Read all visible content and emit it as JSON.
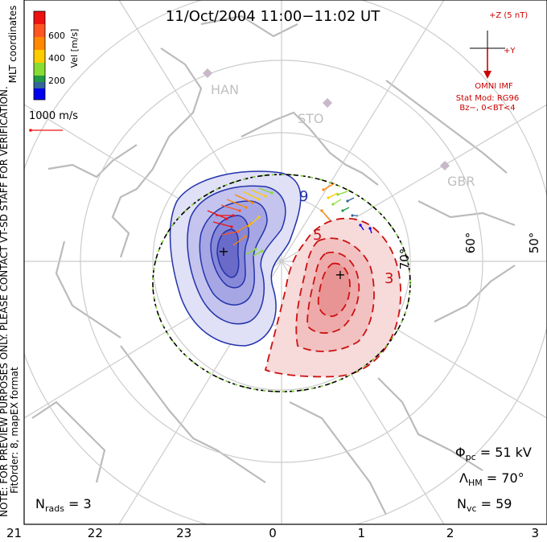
{
  "header": {
    "title": "11/Oct/2004 11:00−11:02 UT"
  },
  "colorbar": {
    "label": "Vel [m/s]",
    "ticks": [
      "600",
      "400",
      "200"
    ],
    "colors": [
      "#ee1111",
      "#ff8800",
      "#ffcc00",
      "#88dd33",
      "#229944",
      "#336699",
      "#0000ee"
    ]
  },
  "side_text": {
    "coords": "MLT coordinates",
    "note": "NOTE: FOR PREVIEW PURPOSES ONLY. PLEASE CONTACT VT-SD STAFF FOR VERIFICATION.",
    "fit": "FitOrder: 8, mapEX format"
  },
  "scale": {
    "label": "1000 m/s"
  },
  "imf": {
    "z_label": "+Z (5 nT)",
    "y_label": "+Y",
    "source": "OMNI IMF",
    "model": "Stat Mod: RG96",
    "condition": "Bz−, 0<BT<4"
  },
  "stations": [
    {
      "code": "HAN"
    },
    {
      "code": "STO"
    },
    {
      "code": "GBR"
    }
  ],
  "latitude_labels": [
    "70°",
    "60°",
    "50°"
  ],
  "contour_labels": [
    "9",
    "5",
    "3"
  ],
  "stats": {
    "phi_sym": "Φ",
    "phi_sub": "pc",
    "phi_val": " = 51 kV",
    "lam_sym": "Λ",
    "lam_sub": "HM",
    "lam_val": " = 70°",
    "nvc_sym": "N",
    "nvc_sub": "vc",
    "nvc_val": " = 59",
    "nrad_sym": "N",
    "nrad_sub": "rads",
    "nrad_val": " = 3"
  },
  "chart_data": {
    "type": "polar_convection_map",
    "mlt_ticks": [
      "21",
      "22",
      "23",
      "0",
      "1",
      "2",
      "3"
    ],
    "latitude_circles": [
      80,
      70,
      60,
      50
    ],
    "heppner_maynard_boundary_deg": 70,
    "cross_polar_potential_kV": 51,
    "n_vectors": 59,
    "n_radars": 3,
    "velocity_scale_m_s": [
      0,
      800
    ],
    "contour_levels_kV": [
      9,
      5,
      3
    ],
    "dusk_cell": {
      "sign": "negative",
      "marker": "+"
    },
    "dawn_cell": {
      "sign": "positive",
      "marker": "+"
    }
  }
}
